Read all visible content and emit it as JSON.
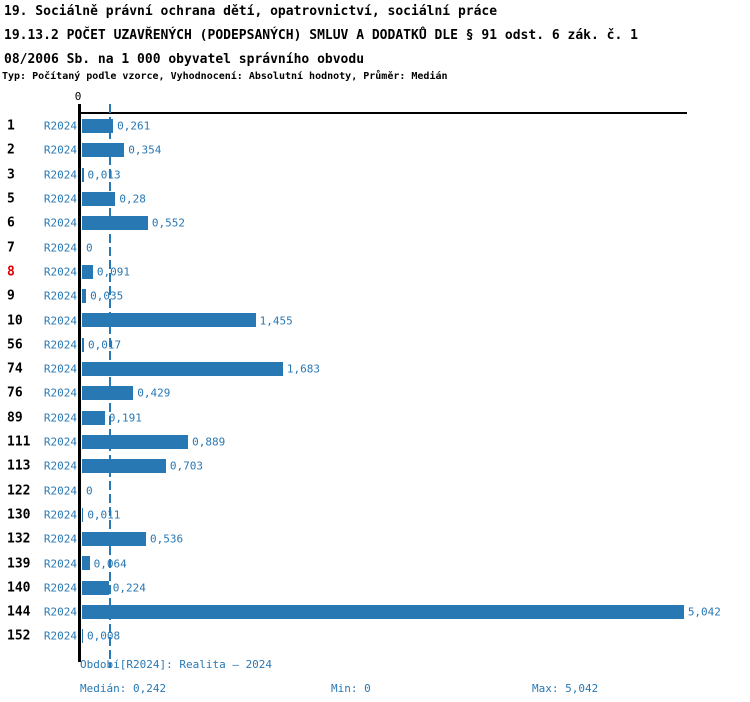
{
  "title": {
    "line1": "19. Sociálně právní ochrana dětí, opatrovnictví, sociální práce",
    "line2": "19.13.2 POČET UZAVŘENÝCH (PODEPSANÝCH) SMLUV A DODATKŮ DLE § 91 odst. 6 zák. č. 1",
    "line3": "08/2006 Sb. na 1 000 obyvatel správního obvodu",
    "meta": "Typ: Počítaný podle vzorce, Vyhodnocení: Absolutní hodnoty, Průměr: Medián"
  },
  "chart_data": {
    "type": "bar",
    "orientation": "horizontal",
    "title": "19.13.2 POČET UZAVŘENÝCH (PODEPSANÝCH) SMLUV A DODATKŮ DLE § 91 odst. 6 zák. č. 108/2006 Sb. na 1 000 obyvatel správního obvodu",
    "categories": [
      "1",
      "2",
      "3",
      "5",
      "6",
      "7",
      "8",
      "9",
      "10",
      "56",
      "74",
      "76",
      "89",
      "111",
      "113",
      "122",
      "130",
      "132",
      "139",
      "140",
      "144",
      "152"
    ],
    "series_label": "R2024",
    "values": [
      0.261,
      0.354,
      0.013,
      0.28,
      0.552,
      0,
      0.091,
      0.035,
      1.455,
      0.017,
      1.683,
      0.429,
      0.191,
      0.889,
      0.703,
      0,
      0.011,
      0.536,
      0.064,
      0.224,
      5.042,
      0.008
    ],
    "value_labels": [
      "0,261",
      "0,354",
      "0,013",
      "0,28",
      "0,552",
      "0",
      "0,091",
      "0,035",
      "1,455",
      "0,017",
      "1,683",
      "0,429",
      "0,191",
      "0,889",
      "0,703",
      "0",
      "0,011",
      "0,536",
      "0,064",
      "0,224",
      "5,042",
      "0,008"
    ],
    "highlighted_category": "8",
    "axis_zero_label": "0",
    "median_value": 0.242,
    "min_value": 0,
    "max_value": 5.042,
    "xlim": [
      0,
      5.085
    ],
    "grid": false,
    "legend": "none",
    "bar_color": "#2878b4",
    "text_color": "#2878b4",
    "median_line_color": "#2878b4",
    "highlight_color": "#e00000",
    "axis_color": "#000000"
  },
  "footer": {
    "period": "Období[R2024]: Realita – 2024",
    "median": "Medián: 0,242",
    "min": "Min: 0",
    "max": "Max: 5,042"
  }
}
